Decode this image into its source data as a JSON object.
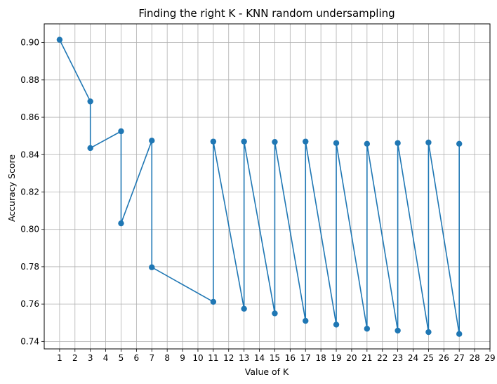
{
  "chart_data": {
    "type": "line",
    "title": "Finding the right K - KNN random undersampling",
    "xlabel": "Value of K",
    "ylabel": "Accuracy Score",
    "xlim": [
      0,
      29
    ],
    "ylim": [
      0.736,
      0.91
    ],
    "xticks": [
      1,
      2,
      3,
      4,
      5,
      6,
      7,
      8,
      9,
      10,
      11,
      12,
      13,
      14,
      15,
      16,
      17,
      18,
      19,
      20,
      21,
      22,
      23,
      24,
      25,
      26,
      27,
      28,
      29
    ],
    "yticks": [
      0.74,
      0.76,
      0.78,
      0.8,
      0.82,
      0.84,
      0.86,
      0.88,
      0.9
    ],
    "ytick_labels": [
      "0.74",
      "0.76",
      "0.78",
      "0.80",
      "0.82",
      "0.84",
      "0.86",
      "0.88",
      "0.90"
    ],
    "grid": true,
    "series": [
      {
        "color": "#1f77b4",
        "marker": "circle",
        "x": [
          1,
          3,
          3,
          5,
          5,
          7,
          7,
          11,
          11,
          13,
          13,
          15,
          15,
          17,
          17,
          19,
          19,
          21,
          21,
          23,
          23,
          25,
          25,
          27,
          27
        ],
        "y": [
          0.9015,
          0.8685,
          0.8435,
          0.8525,
          0.8032,
          0.8475,
          0.7797,
          0.7612,
          0.847,
          0.7575,
          0.847,
          0.755,
          0.8468,
          0.751,
          0.847,
          0.749,
          0.8462,
          0.7468,
          0.8458,
          0.7458,
          0.8462,
          0.745,
          0.8465,
          0.744,
          0.8458
        ]
      }
    ]
  }
}
